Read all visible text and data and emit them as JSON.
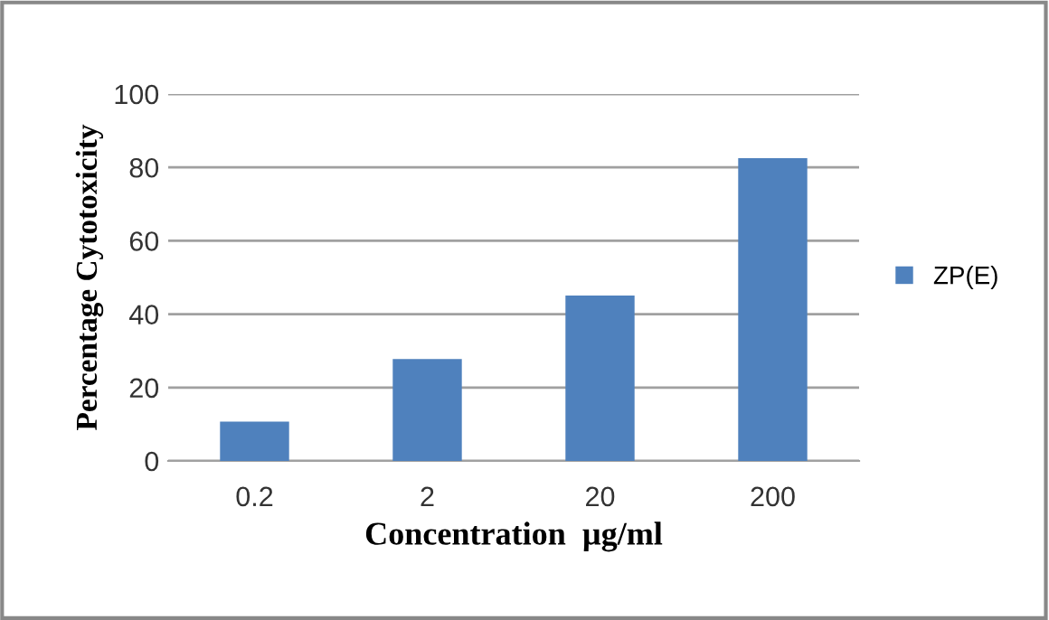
{
  "chart_data": {
    "type": "bar",
    "xlabel": "Concentration  µg/ml",
    "ylabel": "Percentage Cytotoxicity",
    "categories": [
      "0.2",
      "2",
      "20",
      "200"
    ],
    "series": [
      {
        "name": "ZP(E)",
        "color": "#4f81bd",
        "values": [
          10.7,
          27.8,
          45.1,
          82.5
        ]
      }
    ],
    "ylim": [
      0,
      100
    ],
    "yticks": [
      0,
      20,
      40,
      60,
      80,
      100
    ],
    "grid": "y",
    "legend": "right"
  }
}
